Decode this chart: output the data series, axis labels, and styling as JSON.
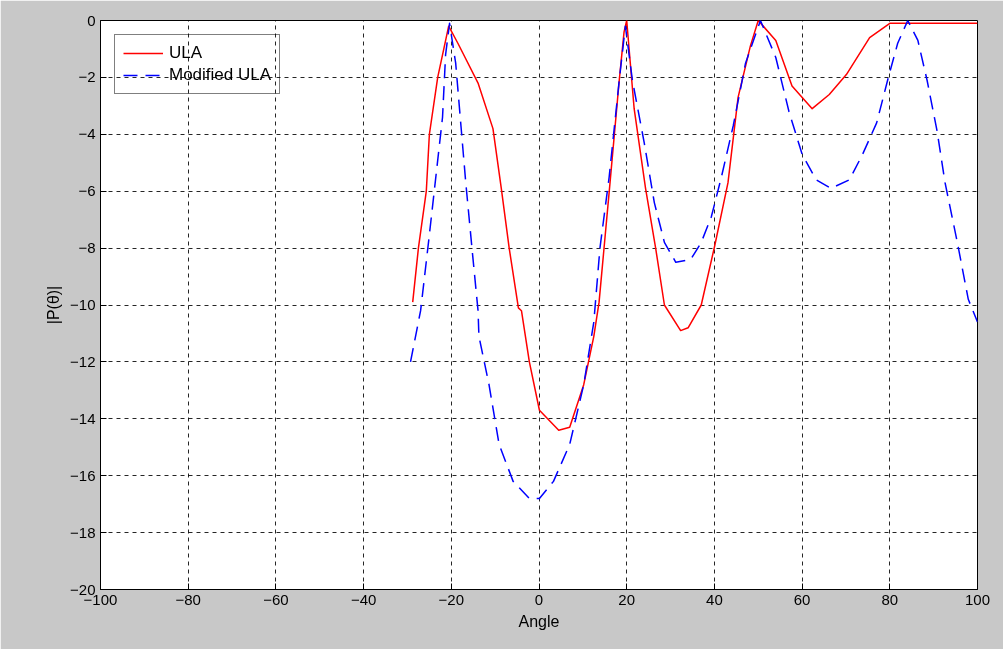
{
  "chart_data": {
    "type": "line",
    "xlabel": "Angle",
    "ylabel": "|P(θ)|",
    "xlim": [
      -100,
      100
    ],
    "ylim": [
      -20,
      0
    ],
    "xticks": [
      -100,
      -80,
      -60,
      -40,
      -20,
      0,
      20,
      40,
      60,
      80,
      100
    ],
    "yticks": [
      -20,
      -18,
      -16,
      -14,
      -12,
      -10,
      -8,
      -6,
      -4,
      -2,
      0
    ],
    "grid": true,
    "legend": "top left",
    "marker": "none",
    "series": [
      {
        "name": "ULA",
        "color": "#ff0000",
        "line_style": "solid",
        "x": [
          -28.8,
          -27.5,
          -25.7,
          -25.0,
          -23.1,
          -20.6,
          -18.5,
          -13.9,
          -10.5,
          -8.6,
          -6.8,
          -4.7,
          -4.0,
          -2.2,
          0.1,
          4.5,
          7.0,
          10.2,
          12.5,
          13.7,
          16.2,
          18.3,
          19.4,
          20.0,
          21.7,
          24.3,
          26.6,
          28.6,
          32.3,
          34.0,
          37.0,
          40.1,
          43.1,
          45.4,
          48.2,
          50.0,
          54.0,
          57.7,
          62.3,
          66.2,
          70.1,
          75.4,
          80.0,
          93.0,
          100.0
        ],
        "values": [
          -9.9,
          -8.0,
          -6.0,
          -4.0,
          -2.0,
          -0.2,
          -0.8,
          -2.2,
          -3.8,
          -5.9,
          -8.0,
          -10.1,
          -10.2,
          -12.0,
          -13.7,
          -14.4,
          -14.3,
          -12.8,
          -11.1,
          -9.9,
          -5.7,
          -2.1,
          -0.4,
          0,
          -3.1,
          -5.9,
          -8.0,
          -10.0,
          -10.9,
          -10.8,
          -10.0,
          -7.9,
          -5.7,
          -2.7,
          -0.9,
          0,
          -0.7,
          -2.3,
          -3.1,
          -2.6,
          -1.9,
          -0.6,
          -0.1,
          -0.1,
          -0.1
        ]
      },
      {
        "name": "Modified ULA",
        "color": "#0000ff",
        "line_style": "dashed",
        "x": [
          -29.3,
          -27.0,
          -25.2,
          -23.6,
          -22.0,
          -21.3,
          -20.4,
          -19.0,
          -17.8,
          -16.7,
          -15.1,
          -13.9,
          -13.7,
          -11.4,
          -9.1,
          -5.9,
          -2.2,
          0.1,
          3.3,
          7.0,
          10.2,
          12.5,
          13.9,
          16.0,
          18.3,
          19.7,
          21.3,
          24.0,
          26.3,
          28.6,
          31.2,
          34.6,
          37.0,
          39.3,
          41.6,
          44.3,
          47.1,
          50.5,
          54.0,
          57.0,
          60.0,
          63.2,
          66.6,
          70.8,
          73.8,
          77.0,
          79.5,
          81.8,
          84.1,
          86.4,
          88.5,
          90.8,
          92.6,
          95.4,
          97.9,
          100.0
        ],
        "values": [
          -12.0,
          -10.2,
          -7.8,
          -5.6,
          -3.4,
          -1.2,
          -0.1,
          -1.5,
          -3.7,
          -5.7,
          -8.3,
          -10.2,
          -11.1,
          -12.8,
          -14.9,
          -16.2,
          -16.8,
          -16.8,
          -16.2,
          -14.9,
          -12.8,
          -10.6,
          -8.0,
          -5.5,
          -2.1,
          -0.2,
          -2.1,
          -4.3,
          -6.4,
          -7.8,
          -8.5,
          -8.4,
          -7.8,
          -6.9,
          -5.5,
          -3.7,
          -1.5,
          0,
          -1.3,
          -3.2,
          -4.7,
          -5.6,
          -5.9,
          -5.6,
          -4.7,
          -3.6,
          -2.1,
          -0.8,
          0,
          -0.7,
          -2.1,
          -3.9,
          -5.7,
          -7.8,
          -9.8,
          -10.6
        ]
      }
    ]
  }
}
